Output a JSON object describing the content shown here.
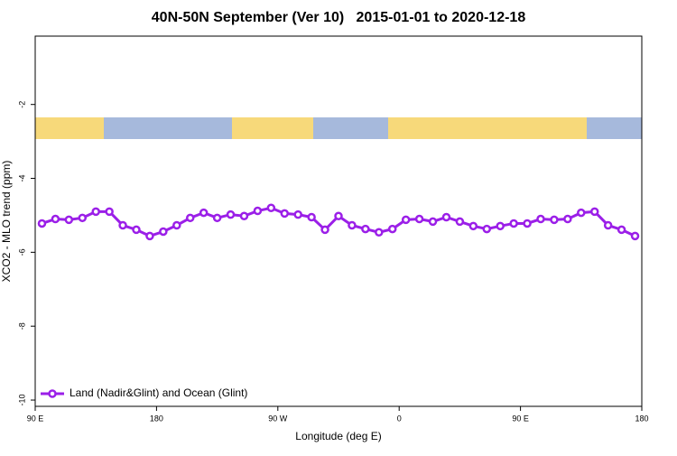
{
  "chart_data": {
    "type": "line",
    "title": "40N-50N September (Ver 10)   2015-01-01 to 2020-12-18",
    "x_label": "Longitude (deg E)",
    "y_label": "XCO2 - MLO trend (ppm)",
    "x": [
      95,
      105,
      115,
      125,
      135,
      145,
      155,
      165,
      175,
      185,
      195,
      205,
      215,
      225,
      235,
      245,
      255,
      265,
      275,
      285,
      295,
      305,
      315,
      325,
      335,
      345,
      355,
      365,
      375,
      385,
      395,
      405,
      415,
      425,
      435,
      445,
      455,
      465,
      475,
      485,
      495,
      505,
      515,
      525,
      535
    ],
    "series": [
      {
        "name": "Land (Nadir&Glint) and Ocean (Glint)",
        "color": "#9b1fe8",
        "values": [
          -5.22,
          -5.1,
          -5.12,
          -5.07,
          -4.9,
          -4.9,
          -5.27,
          -5.39,
          -5.56,
          -5.44,
          -5.27,
          -5.07,
          -4.93,
          -5.07,
          -4.98,
          -5.02,
          -4.88,
          -4.8,
          -4.95,
          -4.98,
          -5.05,
          -5.39,
          -5.02,
          -5.27,
          -5.37,
          -5.46,
          -5.37,
          -5.12,
          -5.1,
          -5.17,
          -5.05,
          -5.17,
          -5.29,
          -5.37,
          -5.29,
          -5.22,
          -5.22,
          -5.1,
          -5.12,
          -5.1,
          -4.93,
          -4.9,
          -5.27,
          -5.39,
          -5.56
        ]
      }
    ],
    "xlim": [
      90,
      540
    ],
    "xticks": [
      {
        "value": 90,
        "label": "90 E"
      },
      {
        "value": 180,
        "label": "180"
      },
      {
        "value": 270,
        "label": "90 W"
      },
      {
        "value": 360,
        "label": "0"
      },
      {
        "value": 450,
        "label": "90 E"
      },
      {
        "value": 540,
        "label": "180"
      }
    ],
    "ylim": [
      -10.17,
      -0.15
    ],
    "yticks": [
      -10,
      -8,
      -6,
      -4,
      -2
    ],
    "legend": "bottom-left"
  }
}
